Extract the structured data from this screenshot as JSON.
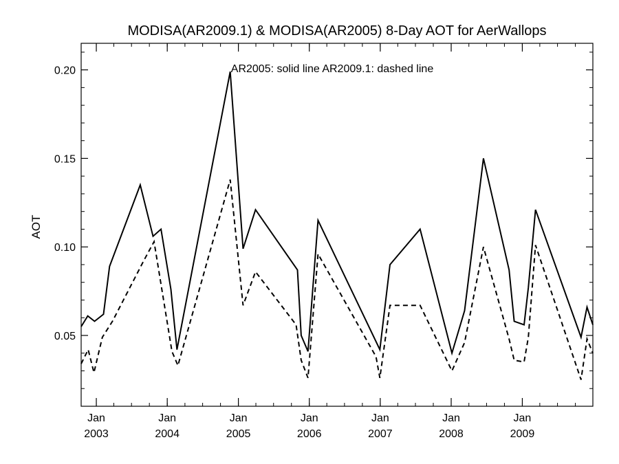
{
  "chart_data": {
    "type": "line",
    "title": "MODISA(AR2009.1) & MODISA(AR2005) 8-Day AOT for AerWallops",
    "annotation": "AR2005: solid line   AR2009.1: dashed line",
    "xlabel": "",
    "ylabel": "AOT",
    "xlim": [
      "2002-10-15",
      "2009-12-30"
    ],
    "ylim": [
      0.01,
      0.215
    ],
    "yticks": [
      0.05,
      0.1,
      0.15,
      0.2
    ],
    "ytick_labels": [
      "0.05",
      "0.10",
      "0.15",
      "0.20"
    ],
    "xticks": [
      {
        "date": "2003-01-01",
        "month": "Jan",
        "year": "2003"
      },
      {
        "date": "2004-01-01",
        "month": "Jan",
        "year": "2004"
      },
      {
        "date": "2005-01-01",
        "month": "Jan",
        "year": "2005"
      },
      {
        "date": "2006-01-01",
        "month": "Jan",
        "year": "2006"
      },
      {
        "date": "2007-01-01",
        "month": "Jan",
        "year": "2007"
      },
      {
        "date": "2008-01-01",
        "month": "Jan",
        "year": "2008"
      },
      {
        "date": "2009-01-01",
        "month": "Jan",
        "year": "2009"
      }
    ],
    "grid": false,
    "series": [
      {
        "name": "AR2005",
        "style": "solid",
        "points": [
          [
            "2002-10-15",
            0.055
          ],
          [
            "2002-11-18",
            0.061
          ],
          [
            "2002-12-23",
            0.058
          ],
          [
            "2003-02-07",
            0.062
          ],
          [
            "2003-03-10",
            0.089
          ],
          [
            "2003-08-15",
            0.135
          ],
          [
            "2003-10-20",
            0.106
          ],
          [
            "2003-11-30",
            0.11
          ],
          [
            "2004-01-20",
            0.076
          ],
          [
            "2004-02-20",
            0.042
          ],
          [
            "2004-11-20",
            0.199
          ],
          [
            "2005-01-25",
            0.099
          ],
          [
            "2005-03-30",
            0.121
          ],
          [
            "2005-11-01",
            0.087
          ],
          [
            "2005-11-20",
            0.05
          ],
          [
            "2005-12-25",
            0.041
          ],
          [
            "2006-02-15",
            0.115
          ],
          [
            "2006-12-30",
            0.042
          ],
          [
            "2007-02-20",
            0.09
          ],
          [
            "2007-07-25",
            0.11
          ],
          [
            "2008-01-05",
            0.04
          ],
          [
            "2008-03-10",
            0.064
          ],
          [
            "2008-06-15",
            0.15
          ],
          [
            "2008-10-25",
            0.087
          ],
          [
            "2008-11-20",
            0.058
          ],
          [
            "2009-01-10",
            0.056
          ],
          [
            "2009-02-01",
            0.077
          ],
          [
            "2009-03-10",
            0.121
          ],
          [
            "2009-10-30",
            0.049
          ],
          [
            "2009-11-30",
            0.066
          ],
          [
            "2009-12-30",
            0.056
          ]
        ]
      },
      {
        "name": "AR2009.1",
        "style": "dashed",
        "points": [
          [
            "2002-10-15",
            0.034
          ],
          [
            "2002-11-20",
            0.042
          ],
          [
            "2002-12-20",
            0.029
          ],
          [
            "2003-02-01",
            0.049
          ],
          [
            "2003-03-25",
            0.058
          ],
          [
            "2003-09-01",
            0.092
          ],
          [
            "2003-10-25",
            0.103
          ],
          [
            "2004-01-25",
            0.041
          ],
          [
            "2004-02-25",
            0.033
          ],
          [
            "2004-11-20",
            0.138
          ],
          [
            "2005-01-25",
            0.067
          ],
          [
            "2005-03-30",
            0.086
          ],
          [
            "2005-10-25",
            0.056
          ],
          [
            "2005-11-20",
            0.036
          ],
          [
            "2005-12-25",
            0.026
          ],
          [
            "2006-02-15",
            0.096
          ],
          [
            "2006-12-10",
            0.038
          ],
          [
            "2006-12-30",
            0.026
          ],
          [
            "2007-02-20",
            0.067
          ],
          [
            "2007-07-25",
            0.067
          ],
          [
            "2008-01-05",
            0.03
          ],
          [
            "2008-03-10",
            0.046
          ],
          [
            "2008-06-15",
            0.1
          ],
          [
            "2008-10-25",
            0.048
          ],
          [
            "2008-11-20",
            0.036
          ],
          [
            "2009-01-10",
            0.035
          ],
          [
            "2009-02-01",
            0.049
          ],
          [
            "2009-03-10",
            0.101
          ],
          [
            "2009-10-30",
            0.025
          ],
          [
            "2009-11-30",
            0.048
          ],
          [
            "2009-12-30",
            0.04
          ]
        ]
      }
    ]
  }
}
